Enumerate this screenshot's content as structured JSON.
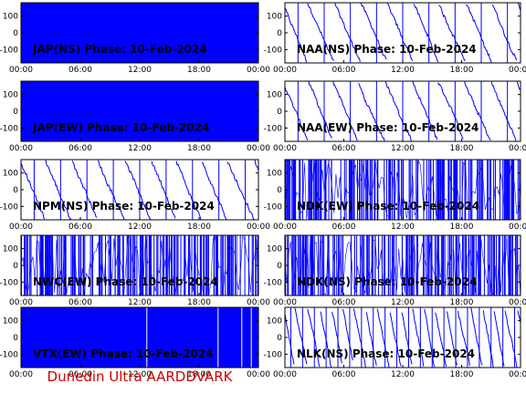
{
  "footer": {
    "label": "Dunedin Ultra AARDDVARK"
  },
  "colors": {
    "trace": "#0000ff",
    "axes": "#000000",
    "footer": "#cc0000"
  },
  "chart_data": [
    {
      "type": "line",
      "title": "JAP(NS) Phase: 10-Feb-2024",
      "ylim": [
        -180,
        180
      ],
      "yticks": [
        100,
        0,
        -100
      ],
      "xlim": [
        "00:00",
        "24:00"
      ],
      "xticks": [
        "00:00",
        "06:00",
        "12:00",
        "18:00",
        "00:00"
      ],
      "series": [
        {
          "values": "full-saturation"
        }
      ]
    },
    {
      "type": "line",
      "title": "NAA(NS) Phase: 10-Feb-2024",
      "ylim": [
        -180,
        180
      ],
      "yticks": [
        100,
        0,
        -100
      ],
      "xlim": [
        "00:00",
        "24:00"
      ],
      "xticks": [
        "00:00",
        "06:00",
        "12:00",
        "18:00",
        "00:00"
      ],
      "series": [
        {
          "values": "wrapping-phase"
        }
      ]
    },
    {
      "type": "line",
      "title": "JAP(EW) Phase: 10-Feb-2024",
      "ylim": [
        -180,
        180
      ],
      "yticks": [
        100,
        0,
        -100
      ],
      "xlim": [
        "00:00",
        "24:00"
      ],
      "xticks": [
        "00:00",
        "06:00",
        "12:00",
        "18:00",
        "00:00"
      ],
      "series": [
        {
          "values": "full-saturation"
        }
      ]
    },
    {
      "type": "line",
      "title": "NAA(EW) Phase: 10-Feb-2024",
      "ylim": [
        -180,
        180
      ],
      "yticks": [
        100,
        0,
        -100
      ],
      "xlim": [
        "00:00",
        "24:00"
      ],
      "xticks": [
        "00:00",
        "06:00",
        "12:00",
        "18:00",
        "00:00"
      ],
      "series": [
        {
          "values": "wrapping-phase"
        }
      ]
    },
    {
      "type": "line",
      "title": "NPM(NS) Phase: 10-Feb-2024",
      "ylim": [
        -180,
        180
      ],
      "yticks": [
        100,
        0,
        -100
      ],
      "xlim": [
        "00:00",
        "24:00"
      ],
      "xticks": [
        "00:00",
        "06:00",
        "12:00",
        "18:00",
        "00:00"
      ],
      "series": [
        {
          "values": "wrapping-phase"
        }
      ]
    },
    {
      "type": "line",
      "title": "NDK(EW) Phase: 10-Feb-2024",
      "ylim": [
        -180,
        180
      ],
      "yticks": [
        100,
        0,
        -100
      ],
      "xlim": [
        "00:00",
        "24:00"
      ],
      "xticks": [
        "00:00",
        "06:00",
        "12:00",
        "18:00",
        "00:00"
      ],
      "series": [
        {
          "values": "noise"
        }
      ]
    },
    {
      "type": "line",
      "title": "NWC(EW) Phase: 10-Feb-2024",
      "ylim": [
        -180,
        180
      ],
      "yticks": [
        100,
        0,
        -100
      ],
      "xlim": [
        "00:00",
        "24:00"
      ],
      "xticks": [
        "00:00",
        "06:00",
        "12:00",
        "18:00",
        "00:00"
      ],
      "series": [
        {
          "values": "noise"
        }
      ]
    },
    {
      "type": "line",
      "title": "NDK(NS) Phase: 10-Feb-2024",
      "ylim": [
        -180,
        180
      ],
      "yticks": [
        100,
        0,
        -100
      ],
      "xlim": [
        "00:00",
        "24:00"
      ],
      "xticks": [
        "00:00",
        "06:00",
        "12:00",
        "18:00",
        "00:00"
      ],
      "series": [
        {
          "values": "noise"
        }
      ]
    },
    {
      "type": "line",
      "title": "VTX(EW) Phase: 10-Feb-2024",
      "ylim": [
        -180,
        180
      ],
      "yticks": [
        100,
        0,
        -100
      ],
      "xlim": [
        "00:00",
        "24:00"
      ],
      "xticks": [
        "00:00",
        "06:00",
        "12:00",
        "18:00",
        "00:00"
      ],
      "series": [
        {
          "values": "full-saturation"
        }
      ]
    },
    {
      "type": "line",
      "title": "NLK(NS) Phase: 10-Feb-2024",
      "ylim": [
        -180,
        180
      ],
      "yticks": [
        100,
        0,
        -100
      ],
      "xlim": [
        "00:00",
        "24:00"
      ],
      "xticks": [
        "00:00",
        "06:00",
        "12:00",
        "18:00",
        "00:00"
      ],
      "series": [
        {
          "values": "wrapping-phase"
        }
      ]
    }
  ]
}
